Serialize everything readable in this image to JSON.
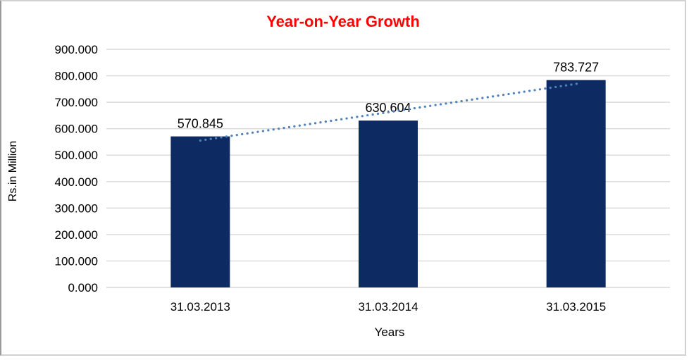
{
  "chart_data": {
    "type": "bar",
    "title": "Year-on-Year Growth",
    "xlabel": "Years",
    "ylabel": "Rs.in Million",
    "categories": [
      "31.03.2013",
      "31.03.2014",
      "31.03.2015"
    ],
    "values": [
      570.845,
      630.604,
      783.727
    ],
    "value_labels": [
      "570.845",
      "630.604",
      "783.727"
    ],
    "y_ticks": [
      "0.000",
      "100.000",
      "200.000",
      "300.000",
      "400.000",
      "500.000",
      "600.000",
      "700.000",
      "800.000",
      "900.000"
    ],
    "ylim": [
      0,
      900
    ],
    "grid": true,
    "legend": false,
    "trendline": {
      "type": "linear",
      "style": "dotted",
      "endpoint_values": [
        555.3,
        768.2
      ]
    },
    "colors": {
      "bar": "#0E2A63",
      "trendline": "#4F81BD",
      "title": "#FF0000",
      "gridline": "#D9D9D9",
      "axis_text": "#000000",
      "frame_border": "#D2D2D2",
      "background": "#FFFFFF"
    }
  }
}
